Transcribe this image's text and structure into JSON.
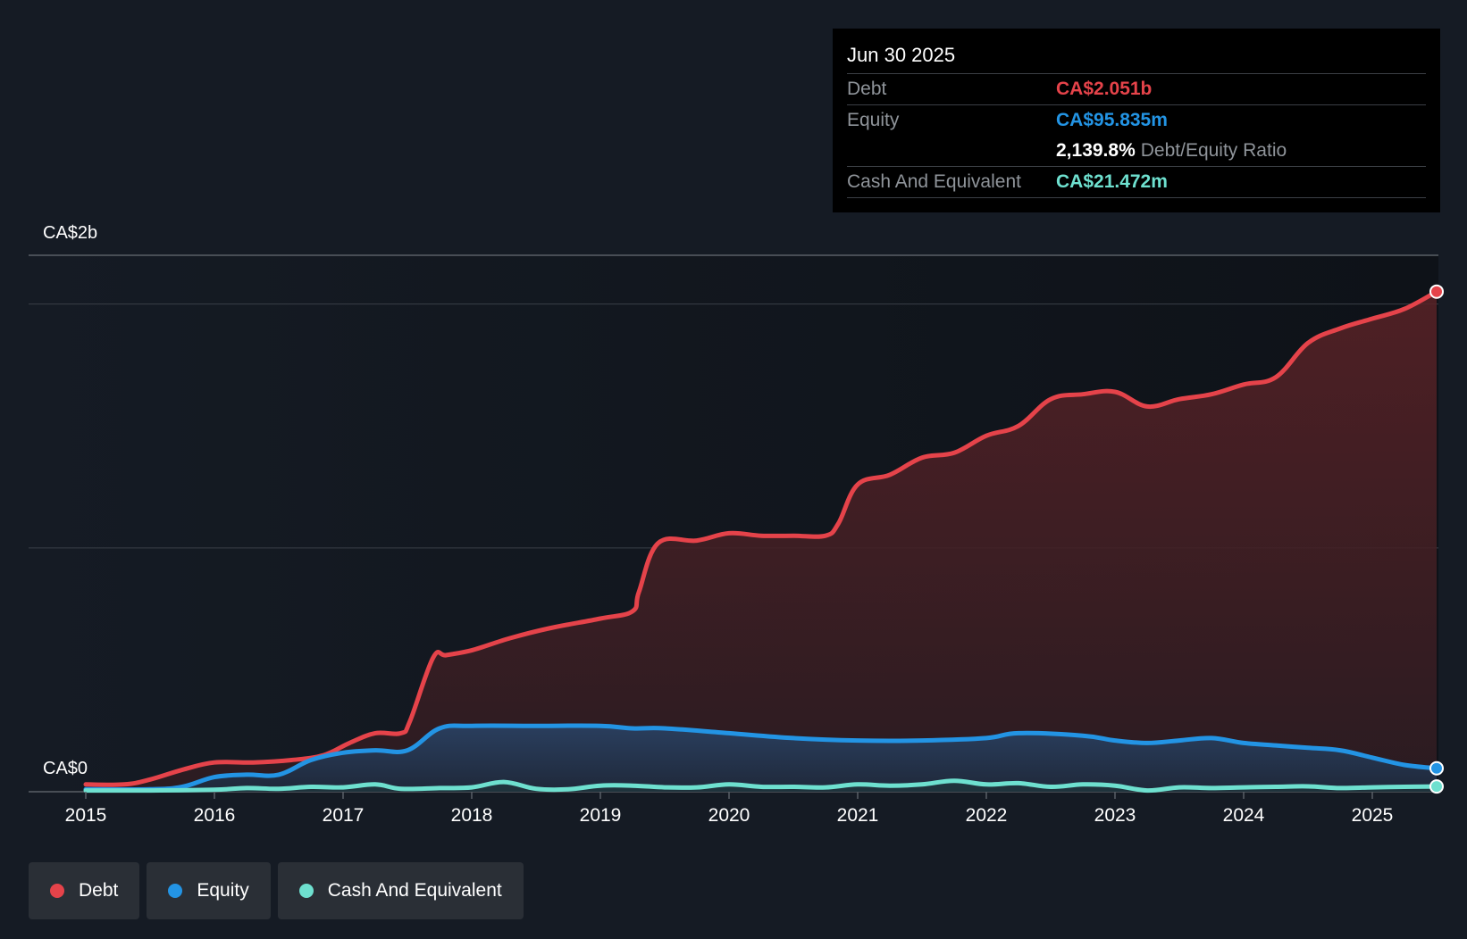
{
  "colors": {
    "background": "#151b24",
    "debt": "#e5434a",
    "equity": "#2394e4",
    "cash": "#6ee0cf",
    "grid": "#3a3f47"
  },
  "tooltip": {
    "date": "Jun 30 2025",
    "debt_label": "Debt",
    "debt_value": "CA$2.051b",
    "equity_label": "Equity",
    "equity_value": "CA$95.835m",
    "ratio_value": "2,139.8%",
    "ratio_label": "Debt/Equity Ratio",
    "cash_label": "Cash And Equivalent",
    "cash_value": "CA$21.472m"
  },
  "legend": [
    {
      "label": "Debt",
      "color": "#e5434a"
    },
    {
      "label": "Equity",
      "color": "#2394e4"
    },
    {
      "label": "Cash And Equivalent",
      "color": "#6ee0cf"
    }
  ],
  "chart_data": {
    "type": "area",
    "title": "",
    "xlabel": "",
    "ylabel": "",
    "ytick_labels": [
      "CA$2b",
      "CA$0"
    ],
    "xtick_labels": [
      "2015",
      "2016",
      "2017",
      "2018",
      "2019",
      "2020",
      "2021",
      "2022",
      "2023",
      "2024",
      "2025"
    ],
    "xlim": [
      2015.0,
      2025.5
    ],
    "ylim_billions": [
      0,
      2.2
    ],
    "series": [
      {
        "name": "Debt",
        "x": [
          2015.0,
          2015.3,
          2015.5,
          2015.75,
          2016.0,
          2016.3,
          2016.6,
          2016.85,
          2017.05,
          2017.25,
          2017.45,
          2017.52,
          2017.7,
          2017.8,
          2018.0,
          2018.3,
          2018.6,
          2019.0,
          2019.25,
          2019.3,
          2019.45,
          2019.75,
          2020.0,
          2020.25,
          2020.5,
          2020.75,
          2020.85,
          2021.0,
          2021.25,
          2021.5,
          2021.75,
          2022.0,
          2022.25,
          2022.5,
          2022.75,
          2023.0,
          2023.25,
          2023.5,
          2023.75,
          2024.0,
          2024.25,
          2024.5,
          2024.75,
          2025.0,
          2025.25,
          2025.5
        ],
        "values": [
          0.03,
          0.03,
          0.05,
          0.09,
          0.12,
          0.12,
          0.13,
          0.15,
          0.2,
          0.24,
          0.24,
          0.29,
          0.55,
          0.56,
          0.58,
          0.63,
          0.67,
          0.71,
          0.74,
          0.82,
          1.02,
          1.03,
          1.06,
          1.05,
          1.05,
          1.05,
          1.1,
          1.26,
          1.3,
          1.37,
          1.39,
          1.46,
          1.5,
          1.61,
          1.63,
          1.64,
          1.58,
          1.61,
          1.63,
          1.67,
          1.7,
          1.84,
          1.9,
          1.94,
          1.98,
          2.051
        ]
      },
      {
        "name": "Equity",
        "x": [
          2015.0,
          2015.5,
          2015.75,
          2016.0,
          2016.25,
          2016.5,
          2016.75,
          2017.0,
          2017.25,
          2017.5,
          2017.75,
          2018.0,
          2018.5,
          2019.0,
          2019.25,
          2019.5,
          2020.0,
          2020.5,
          2021.0,
          2021.5,
          2022.0,
          2022.25,
          2022.75,
          2023.0,
          2023.25,
          2023.5,
          2023.75,
          2024.0,
          2024.25,
          2024.5,
          2024.75,
          2025.0,
          2025.25,
          2025.5
        ],
        "values": [
          0.01,
          0.01,
          0.02,
          0.06,
          0.07,
          0.07,
          0.13,
          0.16,
          0.17,
          0.17,
          0.26,
          0.27,
          0.27,
          0.27,
          0.26,
          0.26,
          0.24,
          0.22,
          0.21,
          0.21,
          0.22,
          0.24,
          0.23,
          0.21,
          0.2,
          0.21,
          0.22,
          0.2,
          0.19,
          0.18,
          0.17,
          0.14,
          0.11,
          0.096
        ]
      },
      {
        "name": "Cash And Equivalent",
        "x": [
          2015.0,
          2015.5,
          2016.0,
          2016.25,
          2016.5,
          2016.75,
          2017.0,
          2017.25,
          2017.45,
          2017.75,
          2018.0,
          2018.25,
          2018.5,
          2018.75,
          2019.0,
          2019.25,
          2019.5,
          2019.75,
          2020.0,
          2020.25,
          2020.5,
          2020.75,
          2021.0,
          2021.25,
          2021.5,
          2021.75,
          2022.0,
          2022.25,
          2022.5,
          2022.75,
          2023.0,
          2023.25,
          2023.5,
          2023.75,
          2024.0,
          2024.25,
          2024.5,
          2024.75,
          2025.0,
          2025.25,
          2025.5
        ],
        "values": [
          0.005,
          0.005,
          0.008,
          0.015,
          0.012,
          0.02,
          0.018,
          0.03,
          0.012,
          0.015,
          0.018,
          0.04,
          0.012,
          0.01,
          0.025,
          0.025,
          0.018,
          0.018,
          0.03,
          0.02,
          0.02,
          0.018,
          0.03,
          0.025,
          0.03,
          0.045,
          0.03,
          0.035,
          0.02,
          0.03,
          0.025,
          0.005,
          0.018,
          0.015,
          0.018,
          0.02,
          0.022,
          0.015,
          0.018,
          0.02,
          0.021472
        ]
      }
    ]
  }
}
